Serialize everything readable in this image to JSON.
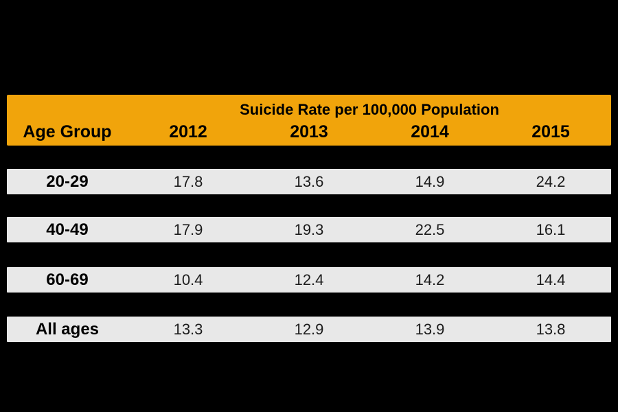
{
  "colors": {
    "page_bg": "#000000",
    "header_bg": "#F1A40B",
    "row_bg": "#E8E8E8",
    "header_text": "#000000",
    "value_text": "#1C1C1C"
  },
  "table": {
    "title": "Suicide Rate per 100,000 Population",
    "columns": [
      "Age Group",
      "2012",
      "2013",
      "2014",
      "2015"
    ],
    "rows": [
      {
        "label": "20-29",
        "values": [
          "17.8",
          "13.6",
          "14.9",
          "24.2"
        ]
      },
      {
        "label": "40-49",
        "values": [
          "17.9",
          "19.3",
          "22.5",
          "16.1"
        ]
      },
      {
        "label": "60-69",
        "values": [
          "10.4",
          "12.4",
          "14.2",
          "14.4"
        ]
      },
      {
        "label": "All ages",
        "values": [
          "13.3",
          "12.9",
          "13.9",
          "13.8"
        ]
      }
    ]
  },
  "chart_data": {
    "type": "table",
    "title": "Suicide Rate per 100,000 Population",
    "row_header": "Age Group",
    "categories": [
      "20-29",
      "40-49",
      "60-69",
      "All ages"
    ],
    "series": [
      {
        "name": "2012",
        "values": [
          17.8,
          17.9,
          10.4,
          13.3
        ]
      },
      {
        "name": "2013",
        "values": [
          13.6,
          19.3,
          12.4,
          12.9
        ]
      },
      {
        "name": "2014",
        "values": [
          14.9,
          22.5,
          14.2,
          13.9
        ]
      },
      {
        "name": "2015",
        "values": [
          24.2,
          16.1,
          14.4,
          13.8
        ]
      }
    ],
    "layout_hints": {
      "header_band_color": "#F1A40B",
      "row_band_color": "#E8E8E8",
      "background": "#000000",
      "grid": false,
      "legend": "none"
    }
  }
}
